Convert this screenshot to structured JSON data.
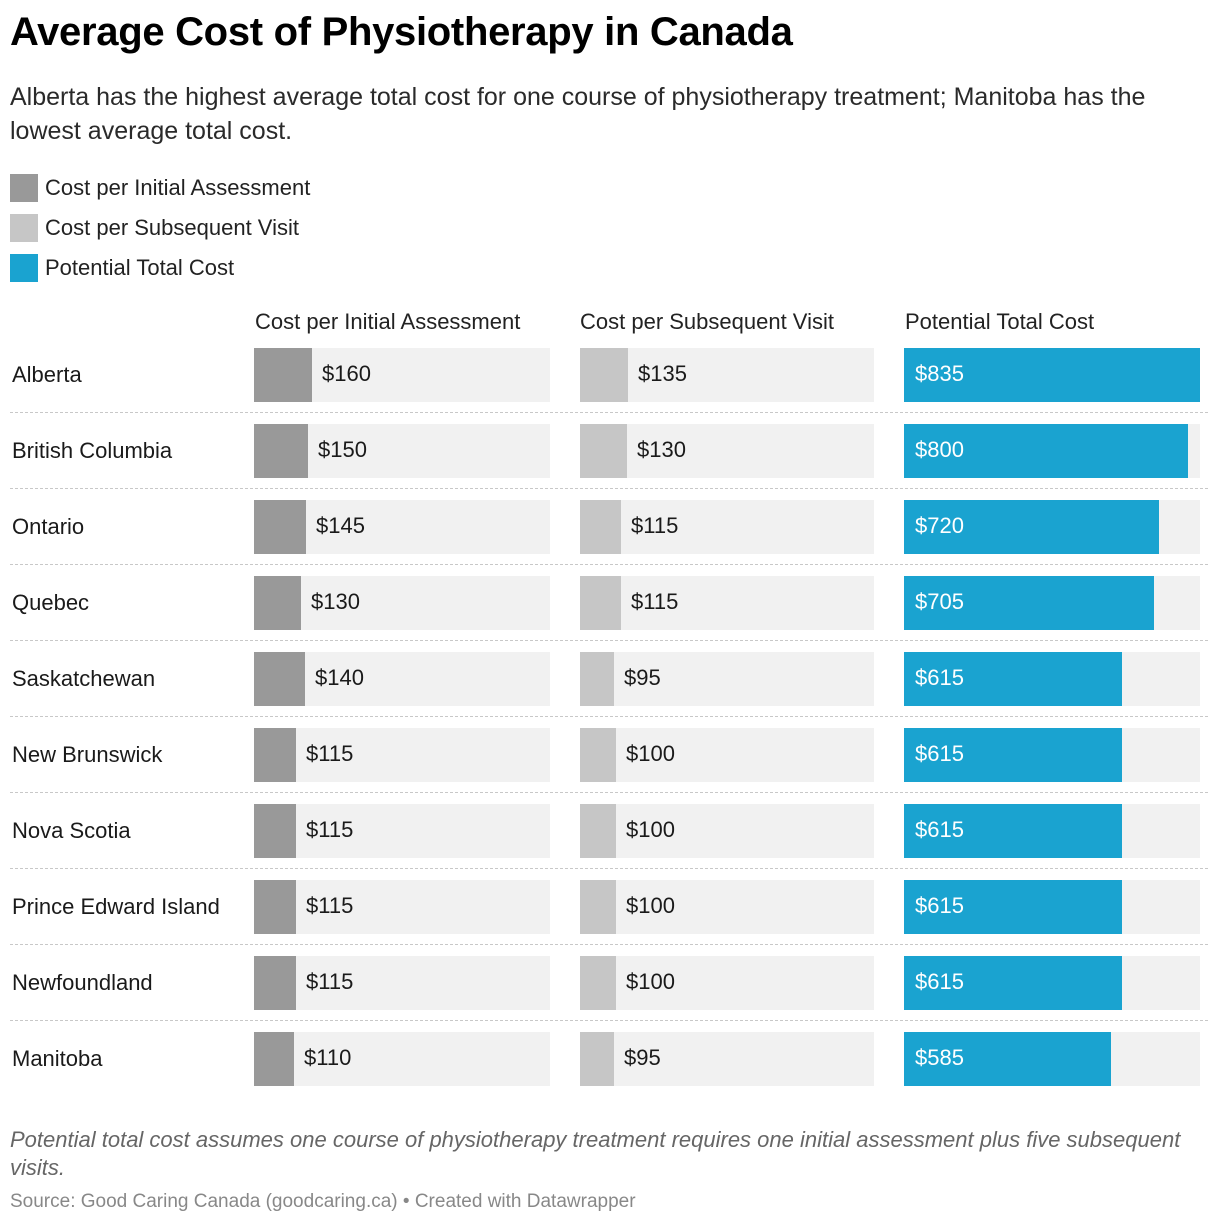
{
  "title": "Average Cost of Physiotherapy in Canada",
  "subtitle": "Alberta has the highest average total cost for one course of physiotherapy treatment; Manitoba has the lowest average total cost.",
  "colors": {
    "initial": "#999999",
    "subsequent": "#c6c6c6",
    "total": "#1aa3d0",
    "track": "#f1f1f1"
  },
  "legend": [
    {
      "label": "Cost per Initial Assessment",
      "color": "#999999"
    },
    {
      "label": "Cost per Subsequent Visit",
      "color": "#c6c6c6"
    },
    {
      "label": "Potential Total Cost",
      "color": "#1aa3d0"
    }
  ],
  "columns": [
    "Cost per Initial Assessment",
    "Cost per Subsequent Visit",
    "Potential Total Cost"
  ],
  "chart_data": {
    "type": "bar",
    "orientation": "horizontal",
    "categories": [
      "Alberta",
      "British Columbia",
      "Ontario",
      "Quebec",
      "Saskatchewan",
      "New Brunswick",
      "Nova Scotia",
      "Prince Edward Island",
      "Newfoundland",
      "Manitoba"
    ],
    "series": [
      {
        "name": "Cost per Initial Assessment",
        "values": [
          160,
          150,
          145,
          130,
          140,
          115,
          115,
          115,
          115,
          110
        ],
        "labels": [
          "$160",
          "$150",
          "$145",
          "$130",
          "$140",
          "$115",
          "$115",
          "$115",
          "$115",
          "$110"
        ],
        "xlim": [
          0,
          820
        ]
      },
      {
        "name": "Cost per Subsequent Visit",
        "values": [
          135,
          130,
          115,
          115,
          95,
          100,
          100,
          100,
          100,
          95
        ],
        "labels": [
          "$135",
          "$130",
          "$115",
          "$115",
          "$95",
          "$100",
          "$100",
          "$100",
          "$100",
          "$95"
        ],
        "xlim": [
          0,
          820
        ]
      },
      {
        "name": "Potential Total Cost",
        "values": [
          835,
          800,
          720,
          705,
          615,
          615,
          615,
          615,
          615,
          585
        ],
        "labels": [
          "$835",
          "$800",
          "$720",
          "$705",
          "$615",
          "$615",
          "$615",
          "$615",
          "$615",
          "$585"
        ],
        "xlim": [
          0,
          835
        ]
      }
    ],
    "title": "Average Cost of Physiotherapy in Canada",
    "xlabel": "",
    "ylabel": ""
  },
  "note": "Potential total cost assumes one course of physiotherapy treatment requires one initial assessment plus five subsequent visits.",
  "source": "Source: Good Caring Canada (goodcaring.ca) • Created with Datawrapper"
}
